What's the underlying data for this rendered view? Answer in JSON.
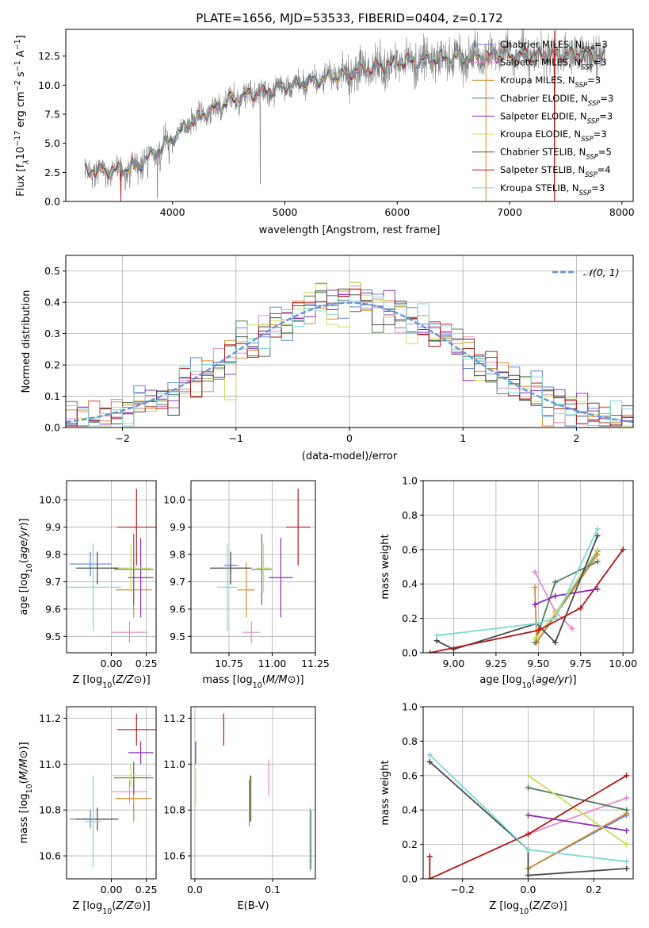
{
  "figure": {
    "title": "PLATE=1656, MJD=53533, FIBERID=0404, z=0.172"
  },
  "colors": {
    "Chabrier MILES": "#5b86d6",
    "Salpeter MILES": "#e68cc8",
    "Kroupa MILES": "#d98c2f",
    "Chabrier ELODIE": "#4f7a5a",
    "Salpeter ELODIE": "#8c2fb3",
    "Kroupa ELODIE": "#c8e05a",
    "Chabrier STELIB": "#4a4a4a",
    "Salpeter STELIB": "#b21818",
    "Kroupa STELIB": "#7fd8d8",
    "data_spectrum": "#808080",
    "normal_curve": "#6495dc"
  },
  "legend_entries": [
    {
      "label": "Chabrier MILES, N",
      "sub": "SSP",
      "tail": "=3",
      "model": "Chabrier MILES"
    },
    {
      "label": "Salpeter MILES, N",
      "sub": "SSP",
      "tail": "=3",
      "model": "Salpeter MILES"
    },
    {
      "label": "Kroupa MILES, N",
      "sub": "SSP",
      "tail": "=3",
      "model": "Kroupa MILES"
    },
    {
      "label": "Chabrier ELODIE, N",
      "sub": "SSP",
      "tail": "=3",
      "model": "Chabrier ELODIE"
    },
    {
      "label": "Salpeter ELODIE, N",
      "sub": "SSP",
      "tail": "=3",
      "model": "Salpeter ELODIE"
    },
    {
      "label": "Kroupa ELODIE, N",
      "sub": "SSP",
      "tail": "=3",
      "model": "Kroupa ELODIE"
    },
    {
      "label": "Chabrier STELIB, N",
      "sub": "SSP",
      "tail": "=5",
      "model": "Chabrier STELIB"
    },
    {
      "label": "Salpeter STELIB, N",
      "sub": "SSP",
      "tail": "=4",
      "model": "Salpeter STELIB"
    },
    {
      "label": "Kroupa STELIB, N",
      "sub": "SSP",
      "tail": "=3",
      "model": "Kroupa STELIB"
    }
  ],
  "chart_data": [
    {
      "id": "spectrum",
      "type": "line",
      "xlabel": "wavelength [Angstrom, rest frame]",
      "ylabel_parts": [
        "Flux [f",
        "λ",
        "10",
        "−17",
        " erg cm",
        "−2",
        " s",
        "−1",
        " A",
        "−1",
        "]"
      ],
      "xlim": [
        3050,
        8100
      ],
      "ylim": [
        0,
        14.8
      ],
      "xticks": [
        4000,
        5000,
        6000,
        7000,
        8000
      ],
      "xtick_labels": [
        "4000",
        "5000",
        "6000",
        "7000",
        "8000"
      ],
      "yticks": [
        0,
        2.5,
        5,
        7.5,
        10,
        12.5
      ],
      "ytick_labels": [
        "0.0",
        "2.5",
        "5.0",
        "7.5",
        "10.0",
        "12.5"
      ],
      "grid": false,
      "legend_position": "upper right",
      "wavelength_range": [
        3220,
        7850
      ],
      "continuum_nodes": [
        [
          3220,
          2.6
        ],
        [
          3500,
          2.7
        ],
        [
          3700,
          3.1
        ],
        [
          3900,
          4.6
        ],
        [
          4100,
          6.3
        ],
        [
          4300,
          7.6
        ],
        [
          4500,
          8.6
        ],
        [
          4700,
          9.2
        ],
        [
          5000,
          9.9
        ],
        [
          5300,
          10.5
        ],
        [
          5600,
          11.1
        ],
        [
          6000,
          11.9
        ],
        [
          6400,
          12.3
        ],
        [
          6800,
          12.5
        ],
        [
          7200,
          12.6
        ],
        [
          7600,
          12.6
        ],
        [
          7850,
          12.4
        ]
      ],
      "data_noise_sigma": 0.7,
      "absorption_spikes": [
        [
          3580,
          1.0
        ],
        [
          3620,
          1.2
        ],
        [
          3780,
          2.0
        ],
        [
          3865,
          0.3
        ],
        [
          3890,
          2.6
        ],
        [
          3968,
          3.2
        ],
        [
          4780,
          1.5
        ]
      ],
      "model_spikes": [
        [
          3540,
          0.0
        ],
        [
          3910,
          0.3
        ],
        [
          6790,
          0.0
        ],
        [
          7400,
          0.0
        ]
      ]
    },
    {
      "id": "residuals",
      "type": "histogram",
      "xlabel": "(data-model)/error",
      "ylabel": "Normed distribution",
      "xlim": [
        -2.5,
        2.5
      ],
      "ylim": [
        0,
        0.55
      ],
      "xticks": [
        -2,
        -1,
        0,
        1,
        2
      ],
      "xtick_labels": [
        "−2",
        "−1",
        "0",
        "1",
        "2"
      ],
      "yticks": [
        0,
        0.1,
        0.2,
        0.3,
        0.4,
        0.5
      ],
      "ytick_labels": [
        "0.0",
        "0.1",
        "0.2",
        "0.3",
        "0.4",
        "0.5"
      ],
      "grid": true,
      "legend_position": "upper right",
      "normal_label": "𝒩(0, 1)",
      "bin_edges_start": -2.5,
      "bin_width": 0.1
    },
    {
      "id": "age_vs_Z",
      "type": "errorbar",
      "xlabel_main": "Z [log",
      "xlabel_sub": "10",
      "xlabel_tail": "(Z/Z⊙)]",
      "ylabel_main": "age  [log",
      "ylabel_sub": "10",
      "ylabel_tail": "(age/yr)]",
      "xlim": [
        -0.32,
        0.32
      ],
      "ylim": [
        9.44,
        10.07
      ],
      "xticks": [
        0.0,
        0.25
      ],
      "xtick_labels": [
        "0.00",
        "0.25"
      ],
      "yticks": [
        9.5,
        9.6,
        9.7,
        9.8,
        9.9,
        10.0
      ],
      "ytick_labels": [
        "9.5",
        "9.6",
        "9.7",
        "9.8",
        "9.9",
        "10.0"
      ],
      "grid": true,
      "points": [
        {
          "model": "Chabrier MILES",
          "x": -0.15,
          "y": 9.765,
          "xerr": 0.15,
          "yerr": 0.045
        },
        {
          "model": "Salpeter MILES",
          "x": 0.13,
          "y": 9.515,
          "xerr": 0.13,
          "yerr": 0.04
        },
        {
          "model": "Kroupa MILES",
          "x": 0.16,
          "y": 9.67,
          "xerr": 0.13,
          "yerr": 0.1
        },
        {
          "model": "Chabrier ELODIE",
          "x": 0.16,
          "y": 9.745,
          "xerr": 0.14,
          "yerr": 0.13
        },
        {
          "model": "Salpeter ELODIE",
          "x": 0.21,
          "y": 9.715,
          "xerr": 0.09,
          "yerr": 0.145
        },
        {
          "model": "Kroupa ELODIE",
          "x": 0.14,
          "y": 9.75,
          "xerr": 0.14,
          "yerr": 0.09
        },
        {
          "model": "Chabrier STELIB",
          "x": -0.1,
          "y": 9.75,
          "xerr": 0.15,
          "yerr": 0.06
        },
        {
          "model": "Salpeter STELIB",
          "x": 0.18,
          "y": 9.9,
          "xerr": 0.14,
          "yerr": 0.14
        },
        {
          "model": "Kroupa STELIB",
          "x": -0.13,
          "y": 9.68,
          "xerr": 0.2,
          "yerr": 0.16
        }
      ]
    },
    {
      "id": "age_vs_mass",
      "type": "errorbar",
      "xlabel_main": "mass [log",
      "xlabel_sub": "10",
      "xlabel_tail": "(M/M⊙)]",
      "xlim": [
        10.53,
        11.25
      ],
      "ylim": [
        9.44,
        10.07
      ],
      "xticks": [
        10.75,
        11.0,
        11.25
      ],
      "xtick_labels": [
        "10.75",
        "11.00",
        "11.25"
      ],
      "yticks": [
        9.5,
        9.6,
        9.7,
        9.8,
        9.9,
        10.0
      ],
      "ytick_labels": [
        "9.5",
        "9.6",
        "9.7",
        "9.8",
        "9.9",
        "10.0"
      ],
      "grid": true,
      "points": [
        {
          "model": "Chabrier MILES",
          "x": 10.76,
          "y": 9.76,
          "xerr": 0.04,
          "yerr": 0.03
        },
        {
          "model": "Salpeter MILES",
          "x": 10.88,
          "y": 9.515,
          "xerr": 0.05,
          "yerr": 0.04
        },
        {
          "model": "Kroupa MILES",
          "x": 10.85,
          "y": 9.67,
          "xerr": 0.05,
          "yerr": 0.1
        },
        {
          "model": "Chabrier ELODIE",
          "x": 10.94,
          "y": 9.745,
          "xerr": 0.06,
          "yerr": 0.13
        },
        {
          "model": "Salpeter ELODIE",
          "x": 11.05,
          "y": 9.715,
          "xerr": 0.07,
          "yerr": 0.145
        },
        {
          "model": "Kroupa ELODIE",
          "x": 10.95,
          "y": 9.75,
          "xerr": 0.04,
          "yerr": 0.09
        },
        {
          "model": "Chabrier STELIB",
          "x": 10.76,
          "y": 9.75,
          "xerr": 0.12,
          "yerr": 0.06
        },
        {
          "model": "Salpeter STELIB",
          "x": 11.15,
          "y": 9.9,
          "xerr": 0.07,
          "yerr": 0.14
        },
        {
          "model": "Kroupa STELIB",
          "x": 10.74,
          "y": 9.68,
          "xerr": 0.06,
          "yerr": 0.16
        }
      ]
    },
    {
      "id": "weight_vs_age",
      "type": "line",
      "xlabel_main": "age  [log",
      "xlabel_sub": "10",
      "xlabel_tail": "(age/yr)]",
      "ylabel": "mass weight",
      "xlim": [
        8.82,
        10.06
      ],
      "ylim": [
        0,
        1.0
      ],
      "xticks": [
        9.0,
        9.25,
        9.5,
        9.75,
        10.0
      ],
      "xtick_labels": [
        "9.00",
        "9.25",
        "9.50",
        "9.75",
        "10.00"
      ],
      "yticks": [
        0,
        0.2,
        0.4,
        0.6,
        0.8,
        1.0
      ],
      "ytick_labels": [
        "0.0",
        "0.2",
        "0.4",
        "0.6",
        "0.8",
        "1.0"
      ],
      "grid": true,
      "series": [
        {
          "model": "Chabrier MILES",
          "x": [
            9.49,
            9.85
          ],
          "y": [
            0.06,
            0.59
          ]
        },
        {
          "model": "Salpeter MILES",
          "x": [
            9.48,
            9.6,
            9.7
          ],
          "y": [
            0.47,
            0.24,
            0.14
          ]
        },
        {
          "model": "Kroupa MILES",
          "x": [
            9.48,
            9.49,
            9.85
          ],
          "y": [
            0.38,
            0.06,
            0.57
          ]
        },
        {
          "model": "Chabrier ELODIE",
          "x": [
            9.48,
            9.6,
            9.85
          ],
          "y": [
            0.06,
            0.41,
            0.53
          ]
        },
        {
          "model": "Salpeter ELODIE",
          "x": [
            9.48,
            9.6,
            9.85
          ],
          "y": [
            0.28,
            0.33,
            0.37
          ]
        },
        {
          "model": "Kroupa ELODIE",
          "x": [
            9.48,
            9.6,
            9.85
          ],
          "y": [
            0.08,
            0.23,
            0.6
          ]
        },
        {
          "model": "Chabrier STELIB",
          "x": [
            8.9,
            9.0,
            9.49,
            9.6,
            9.85
          ],
          "y": [
            0.07,
            0.02,
            0.17,
            0.06,
            0.68
          ]
        },
        {
          "model": "Salpeter STELIB",
          "x": [
            8.86,
            9.5,
            9.75,
            10.0
          ],
          "y": [
            0.0,
            0.13,
            0.26,
            0.6
          ]
        },
        {
          "model": "Kroupa STELIB",
          "x": [
            8.9,
            9.49,
            9.6,
            9.85
          ],
          "y": [
            0.1,
            0.17,
            0.2,
            0.72
          ]
        }
      ]
    },
    {
      "id": "mass_vs_Z",
      "type": "errorbar",
      "xlabel_main": "Z [log",
      "xlabel_sub": "10",
      "xlabel_tail": "(Z/Z⊙)]",
      "ylabel_main": "mass [log",
      "ylabel_sub": "10",
      "ylabel_tail": "(M/M⊙)]",
      "xlim": [
        -0.32,
        0.32
      ],
      "ylim": [
        10.5,
        11.25
      ],
      "xticks": [
        0.0,
        0.25
      ],
      "xtick_labels": [
        "0.00",
        "0.25"
      ],
      "yticks": [
        10.6,
        10.8,
        11.0,
        11.2
      ],
      "ytick_labels": [
        "10.6",
        "10.8",
        "11.0",
        "11.2"
      ],
      "grid": true,
      "points": [
        {
          "model": "Chabrier MILES",
          "x": -0.15,
          "y": 10.76,
          "xerr": 0.15,
          "yerr": 0.04
        },
        {
          "model": "Salpeter MILES",
          "x": 0.13,
          "y": 10.88,
          "xerr": 0.13,
          "yerr": 0.05
        },
        {
          "model": "Kroupa MILES",
          "x": 0.16,
          "y": 10.85,
          "xerr": 0.13,
          "yerr": 0.1
        },
        {
          "model": "Chabrier ELODIE",
          "x": 0.16,
          "y": 10.94,
          "xerr": 0.14,
          "yerr": 0.07
        },
        {
          "model": "Salpeter ELODIE",
          "x": 0.21,
          "y": 11.05,
          "xerr": 0.09,
          "yerr": 0.05
        },
        {
          "model": "Kroupa ELODIE",
          "x": 0.14,
          "y": 10.95,
          "xerr": 0.14,
          "yerr": 0.05
        },
        {
          "model": "Chabrier STELIB",
          "x": -0.1,
          "y": 10.76,
          "xerr": 0.15,
          "yerr": 0.05
        },
        {
          "model": "Salpeter STELIB",
          "x": 0.18,
          "y": 11.15,
          "xerr": 0.14,
          "yerr": 0.07
        },
        {
          "model": "Kroupa STELIB",
          "x": -0.13,
          "y": 10.75,
          "xerr": 0.06,
          "yerr": 0.2
        }
      ]
    },
    {
      "id": "mass_vs_EBV",
      "type": "errorbar",
      "xlabel": "E(B-V)",
      "xlim": [
        -0.005,
        0.155
      ],
      "ylim": [
        10.5,
        11.25
      ],
      "xticks": [
        0.0,
        0.1
      ],
      "xtick_labels": [
        "0.0",
        "0.1"
      ],
      "yticks": [
        10.6,
        10.8,
        11.0,
        11.2
      ],
      "ytick_labels": [
        "10.6",
        "10.8",
        "11.0",
        "11.2"
      ],
      "grid": true,
      "points": [
        {
          "model": "Chabrier MILES",
          "x": 0.07,
          "y": 10.83,
          "xerr": 0,
          "yerr": 0.1
        },
        {
          "model": "Salpeter MILES",
          "x": 0.095,
          "y": 10.94,
          "xerr": 0,
          "yerr": 0.08
        },
        {
          "model": "Kroupa MILES",
          "x": 0.071,
          "y": 10.85,
          "xerr": 0,
          "yerr": 0.1
        },
        {
          "model": "Chabrier ELODIE",
          "x": 0.072,
          "y": 10.85,
          "xerr": 0,
          "yerr": 0.1
        },
        {
          "model": "Salpeter ELODIE",
          "x": 0.001,
          "y": 11.05,
          "xerr": 0,
          "yerr": 0.05
        },
        {
          "model": "Kroupa ELODIE",
          "x": 0.001,
          "y": 10.9,
          "xerr": 0,
          "yerr": 0.08
        },
        {
          "model": "Chabrier STELIB",
          "x": 0.149,
          "y": 10.67,
          "xerr": 0,
          "yerr": 0.13
        },
        {
          "model": "Salpeter STELIB",
          "x": 0.037,
          "y": 11.15,
          "xerr": 0,
          "yerr": 0.07
        },
        {
          "model": "Kroupa STELIB",
          "x": 0.148,
          "y": 10.67,
          "xerr": 0,
          "yerr": 0.14
        }
      ]
    },
    {
      "id": "weight_vs_Z",
      "type": "line",
      "xlabel_main": "Z [log",
      "xlabel_sub": "10",
      "xlabel_tail": "(Z/Z⊙)]",
      "ylabel": "mass weight",
      "xlim": [
        -0.32,
        0.32
      ],
      "ylim": [
        0,
        1.0
      ],
      "xticks": [
        -0.2,
        0.0,
        0.2
      ],
      "xtick_labels": [
        "−0.2",
        "0.0",
        "0.2"
      ],
      "yticks": [
        0,
        0.2,
        0.4,
        0.6,
        0.8,
        1.0
      ],
      "ytick_labels": [
        "0.0",
        "0.2",
        "0.4",
        "0.6",
        "0.8",
        "1.0"
      ],
      "grid": true,
      "series": [
        {
          "model": "Chabrier MILES",
          "x": [
            0.0,
            0.3
          ],
          "y": [
            0.06,
            0.37
          ]
        },
        {
          "model": "Salpeter MILES",
          "x": [
            0.0,
            0.3
          ],
          "y": [
            0.26,
            0.47
          ]
        },
        {
          "model": "Kroupa MILES",
          "x": [
            0.0,
            0.3
          ],
          "y": [
            0.06,
            0.38
          ]
        },
        {
          "model": "Chabrier ELODIE",
          "x": [
            0.0,
            0.3
          ],
          "y": [
            0.53,
            0.4
          ]
        },
        {
          "model": "Salpeter ELODIE",
          "x": [
            0.0,
            0.3
          ],
          "y": [
            0.37,
            0.28
          ]
        },
        {
          "model": "Kroupa ELODIE",
          "x": [
            0.0,
            0.3
          ],
          "y": [
            0.6,
            0.2
          ]
        },
        {
          "model": "Chabrier STELIB",
          "x": [
            -0.3,
            0.0,
            0.0,
            0.3
          ],
          "y": [
            0.68,
            0.17,
            0.02,
            0.06
          ]
        },
        {
          "model": "Salpeter STELIB",
          "x": [
            -0.3,
            -0.3,
            0.0,
            0.3
          ],
          "y": [
            0.13,
            0.0,
            0.26,
            0.6
          ]
        },
        {
          "model": "Kroupa STELIB",
          "x": [
            -0.3,
            0.0,
            0.3
          ],
          "y": [
            0.72,
            0.17,
            0.1
          ]
        }
      ]
    }
  ]
}
